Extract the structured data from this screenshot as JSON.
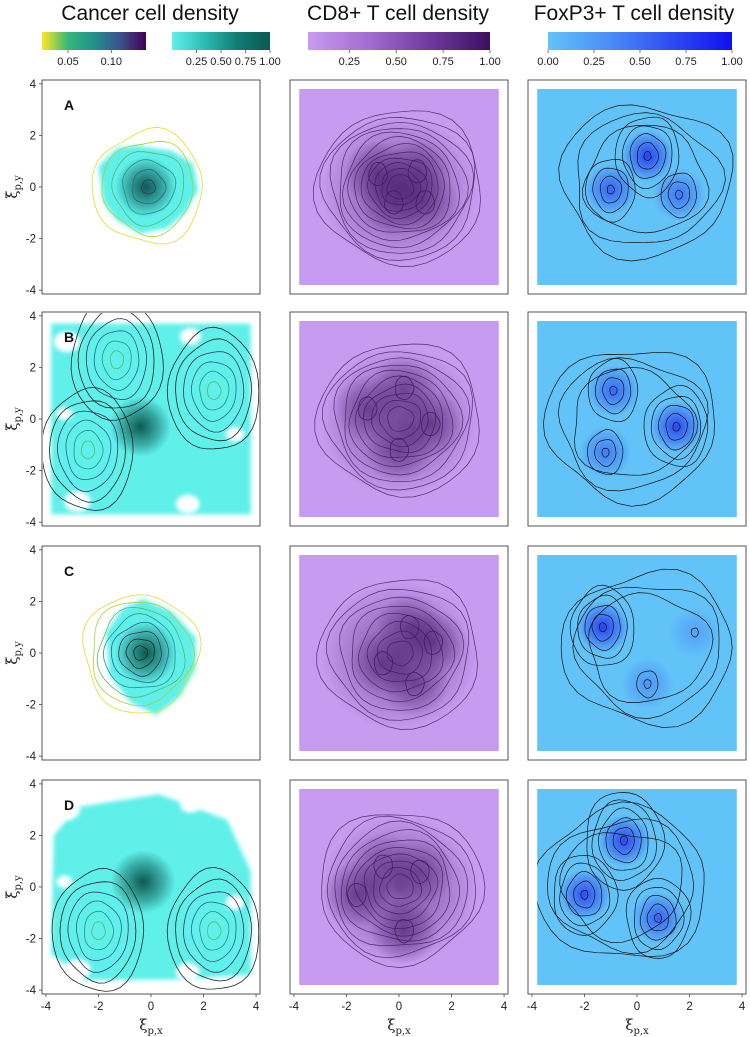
{
  "chart_data": {
    "type": "heatmap",
    "column_titles": [
      "Cancer cell density",
      "CD8+ T cell density",
      "FoxP3+ T cell density"
    ],
    "row_labels": [
      "A",
      "B",
      "C",
      "D"
    ],
    "xlabel_main": "ξ",
    "xlabel_sub": "p,x",
    "ylabel_main": "ξ",
    "ylabel_sub": "p,y",
    "xlim": [
      -4,
      4
    ],
    "ylim": [
      -4,
      4
    ],
    "axis_ticks": [
      -4,
      -2,
      0,
      2,
      4
    ],
    "tick_labels": [
      "-4",
      "-2",
      "0",
      "2",
      "4"
    ],
    "colorbars": [
      {
        "name": "cancer-viridis",
        "gradient": [
          "#fde725",
          "#35b779",
          "#21918c",
          "#3b528b",
          "#440154"
        ],
        "ticks": [
          0.05,
          0.1
        ],
        "tick_labels": [
          "0.05",
          "0.10"
        ],
        "range": [
          0.02,
          0.14
        ]
      },
      {
        "name": "cancer-teal",
        "gradient": [
          "#5ef0ea",
          "#2bbcb4",
          "#0f7c72",
          "#0b5a52"
        ],
        "ticks": [
          0.25,
          0.5,
          0.75,
          1.0
        ],
        "tick_labels": [
          "0.25",
          "0.50",
          "0.75",
          "1.00"
        ],
        "range": [
          0.0,
          1.0
        ]
      },
      {
        "name": "cd8-purple",
        "gradient": [
          "#c79bf0",
          "#a26cd0",
          "#6e3b9f",
          "#3b0f5e"
        ],
        "ticks": [
          0.25,
          0.5,
          0.75,
          1.0
        ],
        "tick_labels": [
          "0.25",
          "0.50",
          "0.75",
          "1.00"
        ],
        "range": [
          0.03,
          1.0
        ]
      },
      {
        "name": "foxp3-blue",
        "gradient": [
          "#62c3f8",
          "#4b8df7",
          "#2f4cf2",
          "#1010ee"
        ],
        "ticks": [
          0.0,
          0.25,
          0.5,
          0.75,
          1.0
        ],
        "tick_labels": [
          "0.00",
          "0.25",
          "0.50",
          "0.75",
          "1.00"
        ],
        "range": [
          0.0,
          1.0
        ]
      }
    ],
    "colors": {
      "cancer_patch": "#5ef0ea",
      "cancer_core": "#0b5a52",
      "cd8_base": "#c79bf0",
      "cd8_dark": "#3b0f5e",
      "foxp3_base": "#62c3f8",
      "foxp3_peak": "#1a22f0",
      "contour": "#222222"
    },
    "panels": {
      "cancer": [
        {
          "row": "A",
          "patch": [
            [
              -1.8,
              -0.6
            ],
            [
              -2,
              0.8
            ],
            [
              -1.3,
              1.5
            ],
            [
              -0.5,
              1.6
            ],
            [
              0.8,
              1.4
            ],
            [
              1.6,
              0.9
            ],
            [
              1.8,
              -0.1
            ],
            [
              1.3,
              -1.0
            ],
            [
              0.6,
              -1.6
            ],
            [
              -0.4,
              -1.8
            ],
            [
              -1.3,
              -1.3
            ]
          ],
          "core": [
            {
              "x": -0.2,
              "y": 0.0,
              "rx": 0.9,
              "ry": 0.9,
              "v": 1.0
            }
          ],
          "contour_center": [
            -0.1,
            0.0
          ],
          "contour_levels": 6
        },
        {
          "row": "B",
          "patch": [
            [
              -3.8,
              -3.7
            ],
            [
              -3.8,
              3.7
            ],
            [
              3.8,
              3.7
            ],
            [
              3.8,
              -3.7
            ]
          ],
          "core": [
            {
              "x": -0.4,
              "y": -0.3,
              "rx": 0.9,
              "ry": 0.9,
              "v": 1.0
            }
          ],
          "wells": [
            {
              "x": -2.4,
              "y": -1.2
            },
            {
              "x": 2.4,
              "y": 1.1
            },
            {
              "x": -1.3,
              "y": 2.3
            }
          ],
          "contour_levels": 6
        },
        {
          "row": "C",
          "patch": [
            [
              -1.6,
              -0.8
            ],
            [
              -1.7,
              0.8
            ],
            [
              -1.1,
              1.7
            ],
            [
              -0.3,
              2.1
            ],
            [
              0.8,
              1.6
            ],
            [
              1.7,
              0.6
            ],
            [
              1.7,
              -0.6
            ],
            [
              1.1,
              -1.7
            ],
            [
              0.2,
              -2.4
            ],
            [
              -0.8,
              -1.9
            ]
          ],
          "core": [
            {
              "x": -0.2,
              "y": 0.0,
              "rx": 0.9,
              "ry": 0.95,
              "v": 1.0
            }
          ],
          "contour_center": [
            -0.4,
            0.0
          ],
          "contour_levels": 8
        },
        {
          "row": "D",
          "patch": [
            [
              -3.8,
              -2.6
            ],
            [
              -3.7,
              2.0
            ],
            [
              -2.8,
              3.1
            ],
            [
              0.3,
              3.6
            ],
            [
              2.9,
              2.6
            ],
            [
              3.8,
              0.6
            ],
            [
              3.8,
              -3.4
            ],
            [
              0.8,
              -3.6
            ],
            [
              -2.5,
              -3.6
            ]
          ],
          "core": [
            {
              "x": -0.3,
              "y": 0.2,
              "rx": 0.95,
              "ry": 0.95,
              "v": 1.0
            }
          ],
          "wells": [
            {
              "x": -2.0,
              "y": -1.7
            },
            {
              "x": 2.4,
              "y": -1.7
            }
          ],
          "contour_levels": 6
        }
      ],
      "cd8": [
        {
          "row": "A",
          "peaks": [
            {
              "x": -0.8,
              "y": 0.5,
              "v": 0.9
            },
            {
              "x": 0.7,
              "y": 0.6,
              "v": 0.85
            },
            {
              "x": -0.2,
              "y": -0.6,
              "v": 0.8
            },
            {
              "x": 1.0,
              "y": -0.6,
              "v": 0.75
            }
          ],
          "contour_levels": 12
        },
        {
          "row": "B",
          "peaks": [
            {
              "x": -1.2,
              "y": 0.4,
              "v": 0.75
            },
            {
              "x": 1.2,
              "y": -0.2,
              "v": 0.8
            },
            {
              "x": 0.0,
              "y": -1.2,
              "v": 0.7
            },
            {
              "x": 0.2,
              "y": 1.2,
              "v": 0.7
            }
          ],
          "contour_levels": 10
        },
        {
          "row": "C",
          "peaks": [
            {
              "x": 0.4,
              "y": 1.0,
              "v": 0.8
            },
            {
              "x": -0.6,
              "y": -0.4,
              "v": 0.75
            },
            {
              "x": 0.6,
              "y": -1.2,
              "v": 0.7
            },
            {
              "x": 1.3,
              "y": 0.4,
              "v": 0.85
            }
          ],
          "contour_levels": 8
        },
        {
          "row": "D",
          "peaks": [
            {
              "x": -1.6,
              "y": -0.3,
              "v": 0.85
            },
            {
              "x": 0.2,
              "y": -1.7,
              "v": 0.85
            },
            {
              "x": 0.8,
              "y": 0.6,
              "v": 0.7
            },
            {
              "x": -0.6,
              "y": 0.8,
              "v": 0.6
            }
          ],
          "contour_levels": 10
        }
      ],
      "foxp3": [
        {
          "row": "A",
          "peaks": [
            {
              "x": 0.4,
              "y": 1.2,
              "v": 1.0
            },
            {
              "x": -1.0,
              "y": -0.1,
              "v": 0.75
            },
            {
              "x": 1.6,
              "y": -0.3,
              "v": 0.6
            }
          ],
          "contour_levels": 9
        },
        {
          "row": "B",
          "peaks": [
            {
              "x": 1.5,
              "y": -0.3,
              "v": 0.95
            },
            {
              "x": -0.9,
              "y": 1.1,
              "v": 0.7
            },
            {
              "x": -1.2,
              "y": -1.3,
              "v": 0.55
            }
          ],
          "contour_levels": 9
        },
        {
          "row": "C",
          "peaks": [
            {
              "x": -1.3,
              "y": 1.0,
              "v": 1.0
            },
            {
              "x": 0.4,
              "y": -1.2,
              "v": 0.35
            },
            {
              "x": 2.2,
              "y": 0.8,
              "v": 0.25
            }
          ],
          "contour_levels": 9
        },
        {
          "row": "D",
          "peaks": [
            {
              "x": -0.5,
              "y": 1.8,
              "v": 0.95
            },
            {
              "x": -2.0,
              "y": -0.3,
              "v": 0.9
            },
            {
              "x": 0.8,
              "y": -1.2,
              "v": 0.75
            }
          ],
          "contour_levels": 10
        }
      ]
    }
  }
}
